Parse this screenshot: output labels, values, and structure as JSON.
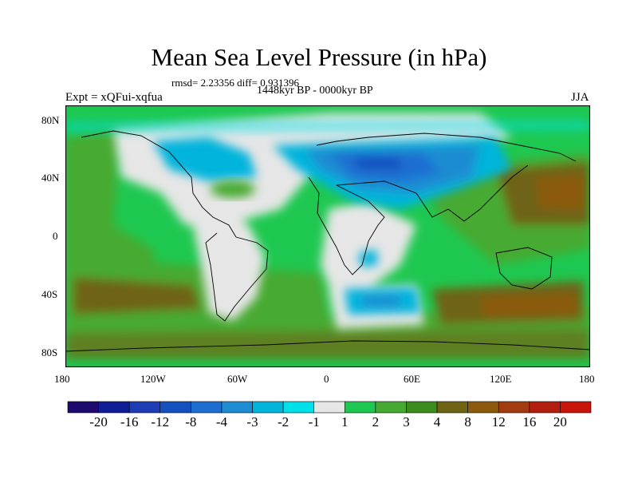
{
  "title": "Mean Sea Level Pressure (in hPa)",
  "stats": "rmsd= 2.23356 diff= 0.931396",
  "period": "1448kyr BP - 0000kyr BP",
  "experiment": "Expt = xQFui-xqfua",
  "season": "JJA",
  "map": {
    "lon_range": [
      -180,
      180
    ],
    "lat_range": [
      -90,
      90
    ],
    "x_tick_labels": [
      "180",
      "120W",
      "60W",
      "0",
      "60E",
      "120E",
      "180"
    ],
    "y_tick_labels": [
      "80N",
      "40N",
      "0",
      "40S",
      "80S"
    ]
  },
  "colorbar": {
    "colors": [
      "#1e0a6e",
      "#0f1e96",
      "#1e3cb4",
      "#1450be",
      "#1e6ed2",
      "#1e8cd2",
      "#00b4dc",
      "#00e0e8",
      "#e6e6e6",
      "#1ec850",
      "#46aa32",
      "#3c8c1e",
      "#6e6414",
      "#8c5a0f",
      "#a03c0f",
      "#b41e0f",
      "#c8140a"
    ],
    "tick_labels": [
      "-20",
      "-16",
      "-12",
      "-8",
      "-4",
      "-3",
      "-2",
      "-1",
      "1",
      "2",
      "3",
      "4",
      "8",
      "12",
      "16",
      "20"
    ]
  }
}
